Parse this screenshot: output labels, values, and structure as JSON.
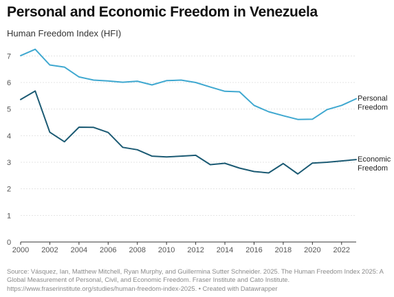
{
  "title": "Personal and Economic Freedom in Venezuela",
  "subtitle": "Human Freedom Index (HFI)",
  "source": "Source: Vásquez, Ian, Matthew Mitchell, Ryan Murphy, and Guillermina Sutter Schneider. 2025. The Human Freedom Index 2025: A Global Measurement of Personal, Civil, and Economic Freedom. Fraser Institute and Cato Institute. https://www.fraserinstitute.org/studies/human-freedom-index-2025. • Created with Datawrapper",
  "colors": {
    "personal": "#3fa8d0",
    "economic": "#1b5a73",
    "grid": "#e3e3e3",
    "axis": "#333333"
  },
  "chart_data": {
    "type": "line",
    "title": "Personal and Economic Freedom in Venezuela",
    "ylabel": "Human Freedom Index (HFI)",
    "xlim": [
      2000,
      2023
    ],
    "ylim": [
      0,
      7.5
    ],
    "x_ticks": [
      "2000",
      "2002",
      "2004",
      "2006",
      "2008",
      "2010",
      "2012",
      "2014",
      "2016",
      "2018",
      "2020",
      "2022"
    ],
    "y_ticks": [
      "0",
      "1",
      "2",
      "3",
      "4",
      "5",
      "6",
      "7"
    ],
    "grid": true,
    "legend": "inline labels at right end of lines",
    "x": [
      2000,
      2001,
      2002,
      2003,
      2004,
      2005,
      2006,
      2007,
      2008,
      2009,
      2010,
      2011,
      2012,
      2013,
      2014,
      2015,
      2016,
      2017,
      2018,
      2019,
      2020,
      2021,
      2022,
      2023
    ],
    "series": [
      {
        "name": "Personal Freedom",
        "label_lines": [
          "Personal",
          "Freedom"
        ],
        "color": "#3fa8d0",
        "values": [
          7.01,
          7.25,
          6.66,
          6.58,
          6.21,
          6.09,
          6.06,
          6.01,
          6.05,
          5.91,
          6.07,
          6.09,
          6.0,
          5.83,
          5.67,
          5.65,
          5.14,
          4.9,
          4.75,
          4.61,
          4.62,
          4.98,
          5.14,
          5.39
        ]
      },
      {
        "name": "Economic Freedom",
        "label_lines": [
          "Economic",
          "Freedom"
        ],
        "color": "#1b5a73",
        "values": [
          5.36,
          5.68,
          4.13,
          3.77,
          4.32,
          4.31,
          4.12,
          3.56,
          3.47,
          3.23,
          3.2,
          3.23,
          3.26,
          2.91,
          2.96,
          2.78,
          2.65,
          2.6,
          2.95,
          2.56,
          2.97,
          3.0,
          3.05,
          3.1
        ]
      }
    ]
  }
}
